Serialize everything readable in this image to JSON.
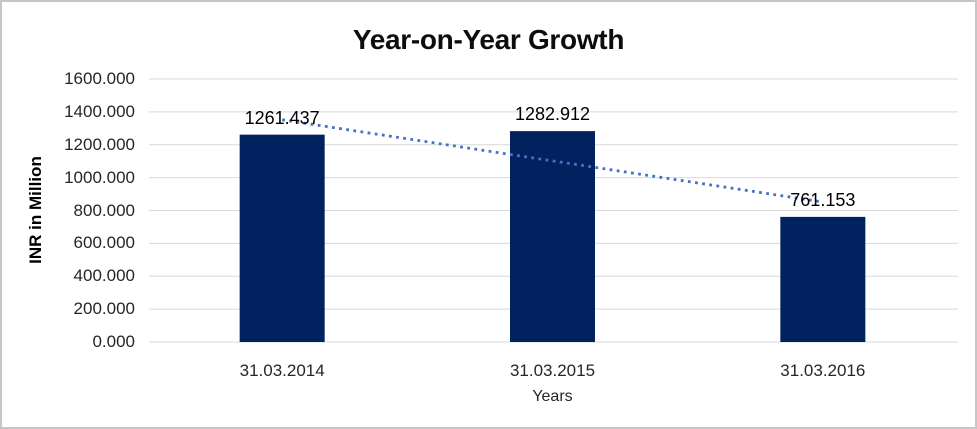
{
  "frame": {
    "background": "#FFFFFF",
    "border_color": "#C6C6C6"
  },
  "chart_data": {
    "type": "bar",
    "title": "Year-on-Year Growth",
    "xlabel": "Years",
    "ylabel": "INR in Million",
    "categories": [
      "31.03.2014",
      "31.03.2015",
      "31.03.2016"
    ],
    "values": [
      1261.437,
      1282.912,
      761.153
    ],
    "value_labels": [
      "1261.437",
      "1282.912",
      "761.153"
    ],
    "ylim": [
      0,
      1600
    ],
    "ytick_step": 200,
    "ytick_labels": [
      "1600.000",
      "1400.000",
      "1200.000",
      "1000.000",
      "800.000",
      "600.000",
      "400.000",
      "200.000",
      "0.000"
    ],
    "grid": "horizontal",
    "gridline_color": "#D9D9D9",
    "legend": "none",
    "bar_color": "#02215F",
    "trendline": {
      "type": "linear",
      "style": "dotted",
      "color": "#4472C4",
      "start_value": 1351.98,
      "end_value": 851.69
    }
  }
}
